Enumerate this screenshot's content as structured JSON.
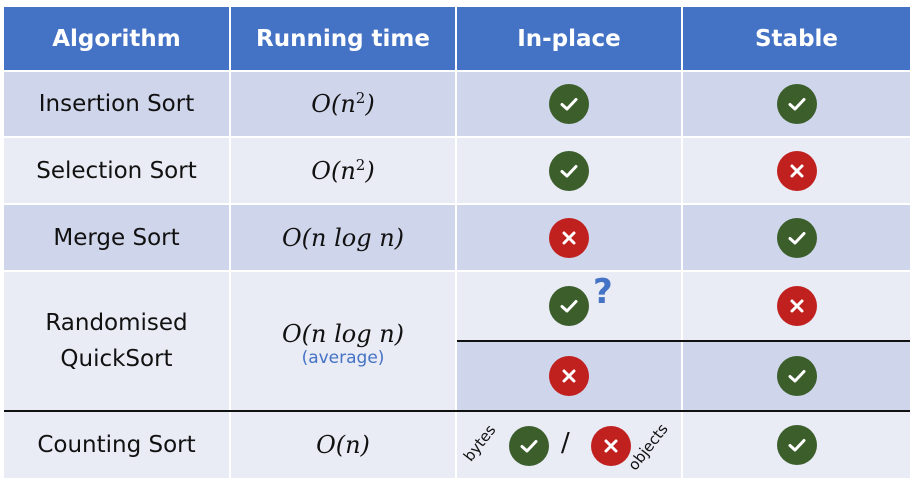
{
  "headers": {
    "algorithm": "Algorithm",
    "running_time": "Running time",
    "in_place": "In-place",
    "stable": "Stable"
  },
  "rows": [
    {
      "name": "Insertion Sort",
      "time_base": "O(n",
      "time_exp": "2",
      "time_close": ")",
      "in_place": "check-icon",
      "stable": "check-icon"
    },
    {
      "name": "Selection Sort",
      "time_base": "O(n",
      "time_exp": "2",
      "time_close": ")",
      "in_place": "check-icon",
      "stable": "cross-icon"
    },
    {
      "name": "Merge Sort",
      "time": "O(n log n)",
      "in_place": "cross-icon",
      "stable": "check-icon"
    },
    {
      "name_line1": "Randomised",
      "name_line2": "QuickSort",
      "time": "O(n log n)",
      "note": "(average)",
      "variant1": {
        "in_place": "check-icon",
        "question": "?",
        "stable": "cross-icon"
      },
      "variant2": {
        "in_place": "cross-icon",
        "stable": "check-icon"
      }
    },
    {
      "name": "Counting Sort",
      "time": "O(n)",
      "bytes_label": "bytes",
      "slash": "/",
      "objects_label": "objects",
      "in_place_bytes": "check-icon",
      "in_place_objects": "cross-icon",
      "stable": "check-icon"
    }
  ],
  "colors": {
    "header": "#4472c4",
    "row_dark": "#cfd5ea",
    "row_light": "#e9ebf5",
    "check": "#3b5e2b",
    "cross": "#c0201e",
    "note": "#4472c4"
  }
}
